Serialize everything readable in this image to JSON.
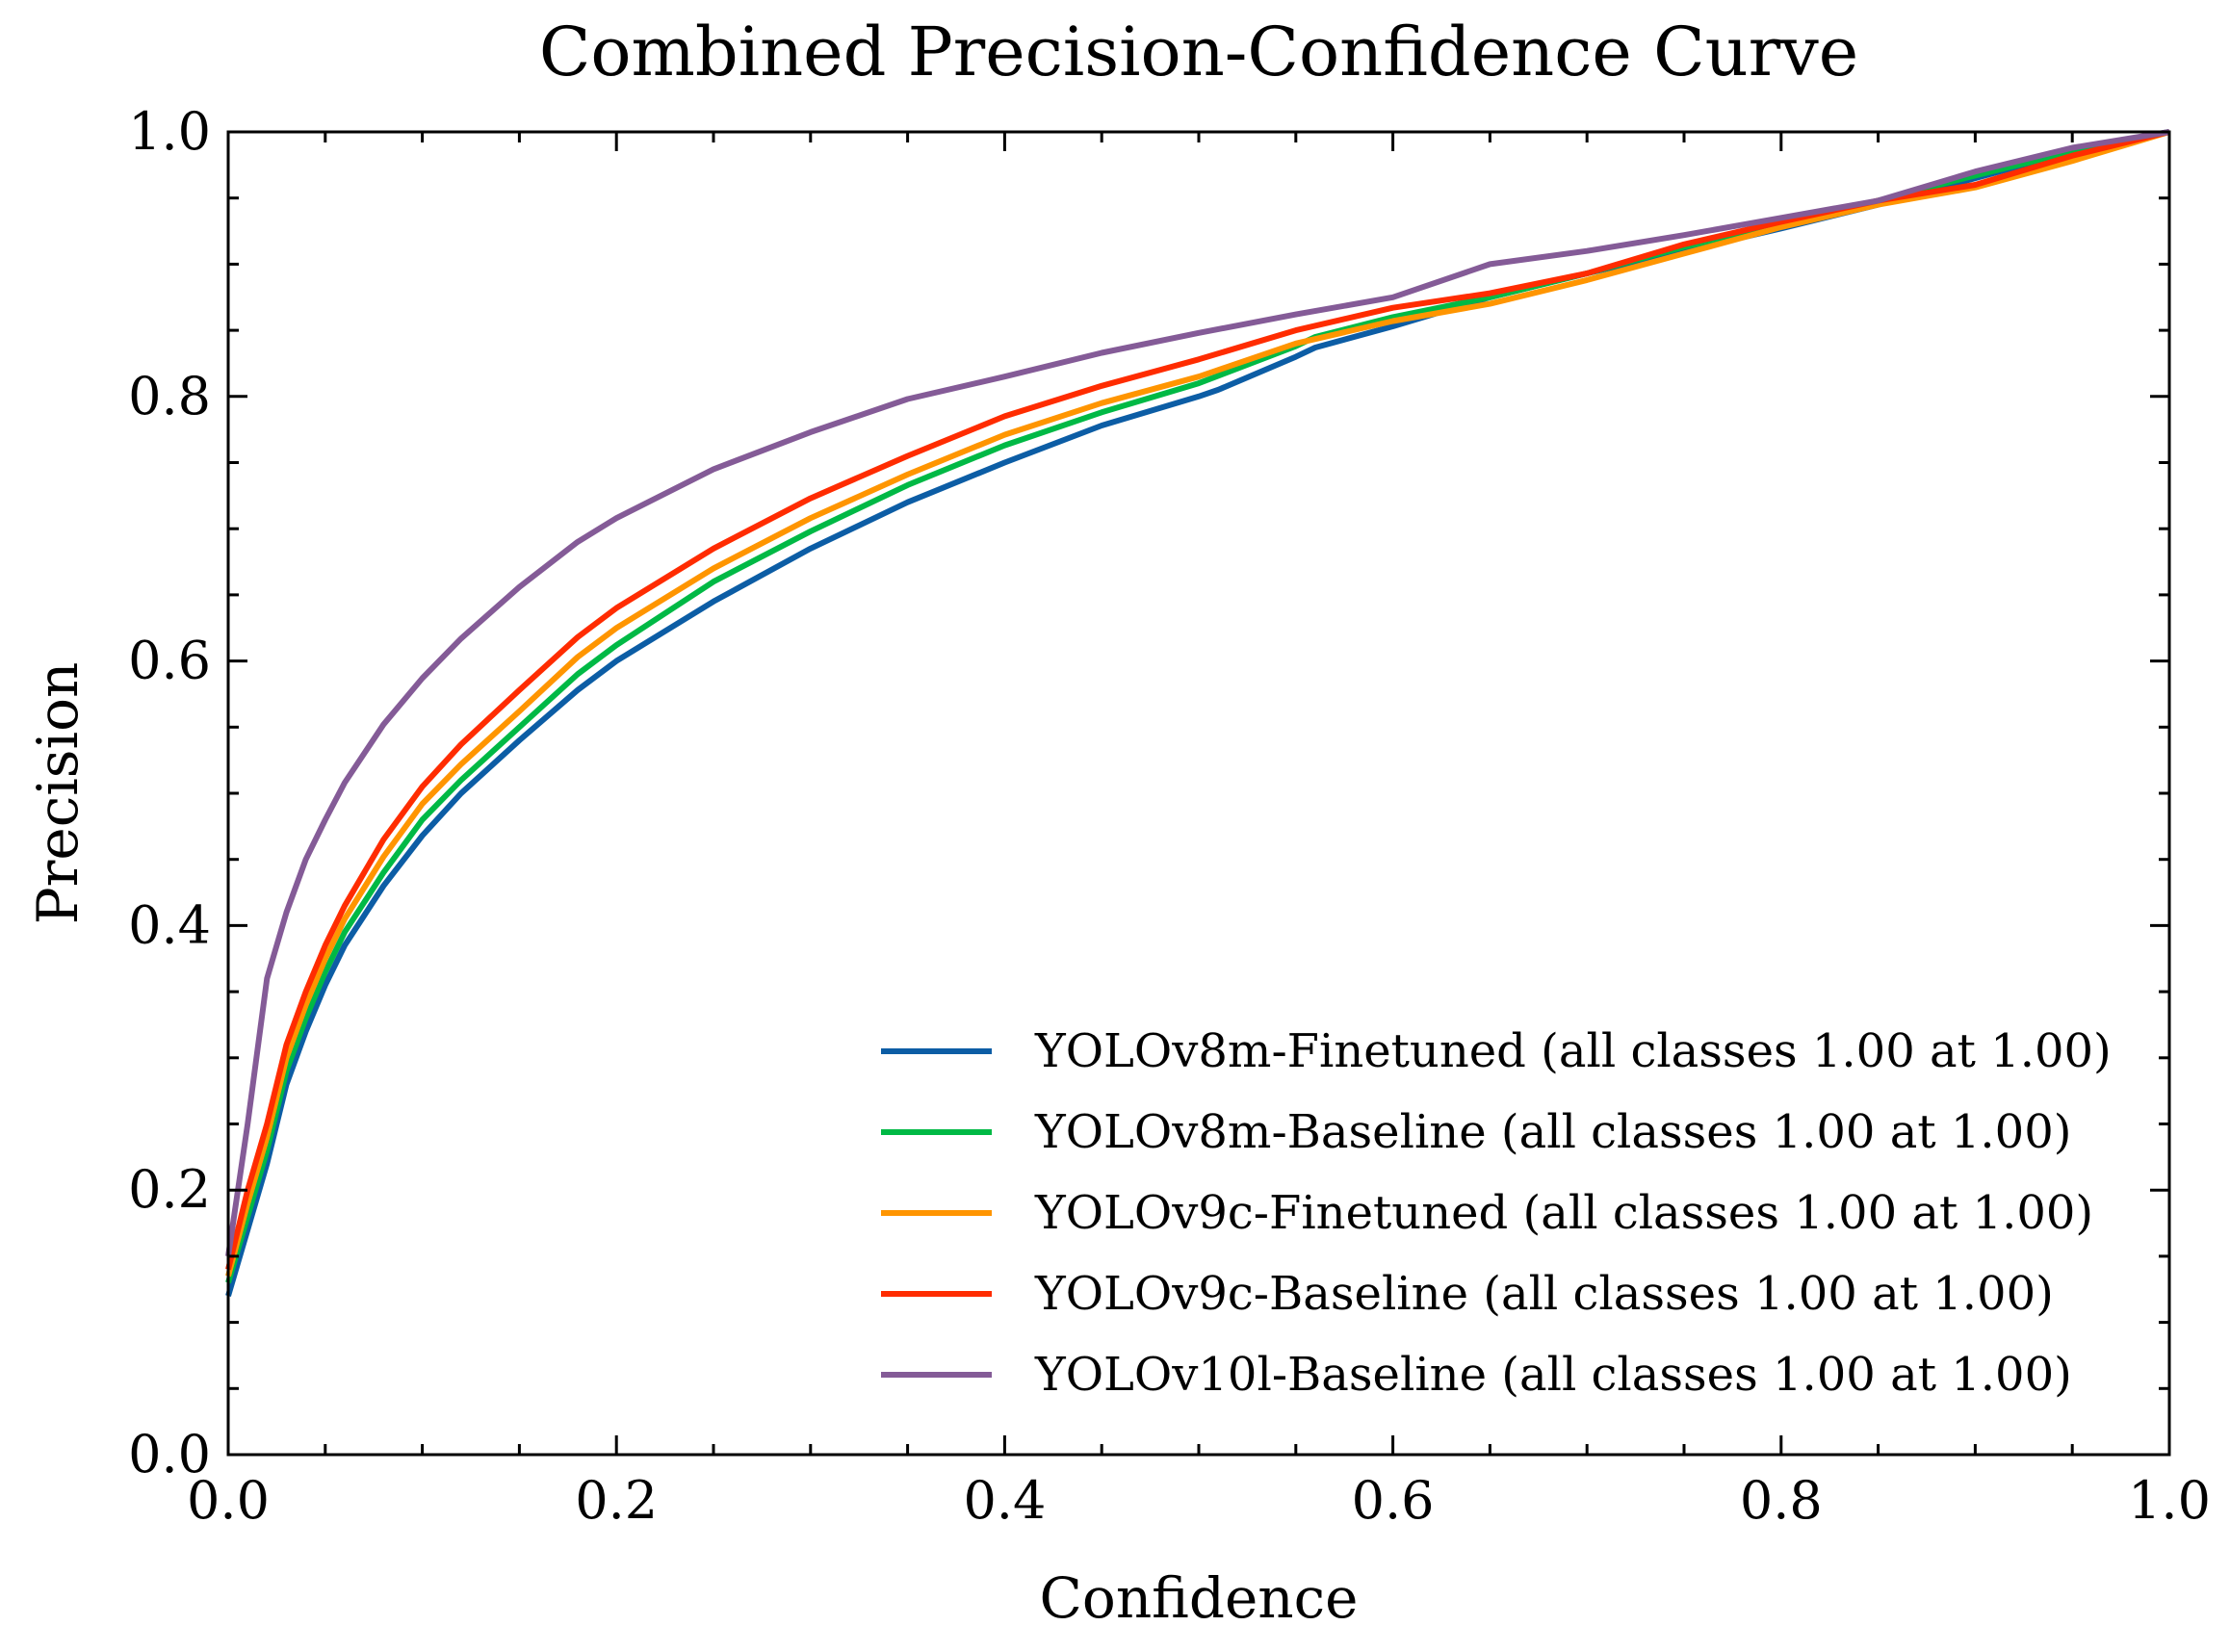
{
  "chart_data": {
    "type": "line",
    "title": "Combined Precision-Confidence Curve",
    "xlabel": "Confidence",
    "ylabel": "Precision",
    "xlim": [
      0.0,
      1.0
    ],
    "ylim": [
      0.0,
      1.0
    ],
    "xticks": [
      "0.0",
      "0.2",
      "0.4",
      "0.6",
      "0.8",
      "1.0"
    ],
    "yticks": [
      "0.0",
      "0.2",
      "0.4",
      "0.6",
      "0.8",
      "1.0"
    ],
    "grid": false,
    "legend_position": "lower-right",
    "series": [
      {
        "name": "YOLOv8m-Finetuned (all classes 1.00 at 1.00)",
        "color": "#0c5da5",
        "x": [
          0.0,
          0.01,
          0.02,
          0.03,
          0.04,
          0.05,
          0.06,
          0.08,
          0.1,
          0.12,
          0.15,
          0.18,
          0.2,
          0.25,
          0.3,
          0.35,
          0.4,
          0.45,
          0.5,
          0.51,
          0.55,
          0.56,
          0.6,
          0.65,
          0.7,
          0.75,
          0.8,
          0.85,
          0.9,
          0.95,
          1.0
        ],
        "y": [
          0.12,
          0.17,
          0.22,
          0.28,
          0.32,
          0.355,
          0.385,
          0.43,
          0.468,
          0.5,
          0.54,
          0.578,
          0.6,
          0.645,
          0.685,
          0.72,
          0.75,
          0.778,
          0.8,
          0.805,
          0.83,
          0.837,
          0.853,
          0.875,
          0.893,
          0.91,
          0.927,
          0.945,
          0.965,
          0.985,
          1.0
        ]
      },
      {
        "name": "YOLOv8m-Baseline (all classes 1.00 at 1.00)",
        "color": "#00b945",
        "x": [
          0.0,
          0.01,
          0.02,
          0.03,
          0.04,
          0.05,
          0.06,
          0.08,
          0.1,
          0.12,
          0.15,
          0.18,
          0.2,
          0.25,
          0.3,
          0.35,
          0.4,
          0.45,
          0.5,
          0.55,
          0.56,
          0.6,
          0.65,
          0.7,
          0.75,
          0.8,
          0.85,
          0.9,
          0.95,
          1.0
        ],
        "y": [
          0.13,
          0.18,
          0.23,
          0.29,
          0.33,
          0.365,
          0.395,
          0.44,
          0.48,
          0.51,
          0.55,
          0.59,
          0.612,
          0.66,
          0.698,
          0.733,
          0.763,
          0.788,
          0.81,
          0.838,
          0.845,
          0.86,
          0.875,
          0.893,
          0.913,
          0.93,
          0.948,
          0.967,
          0.985,
          1.0
        ]
      },
      {
        "name": "YOLOv9c-Finetuned (all classes 1.00 at 1.00)",
        "color": "#ff9500",
        "x": [
          0.0,
          0.01,
          0.02,
          0.03,
          0.04,
          0.05,
          0.06,
          0.08,
          0.1,
          0.12,
          0.15,
          0.18,
          0.2,
          0.25,
          0.3,
          0.35,
          0.4,
          0.45,
          0.5,
          0.55,
          0.6,
          0.65,
          0.7,
          0.75,
          0.8,
          0.85,
          0.9,
          0.95,
          1.0
        ],
        "y": [
          0.135,
          0.19,
          0.24,
          0.3,
          0.34,
          0.375,
          0.405,
          0.452,
          0.492,
          0.522,
          0.562,
          0.603,
          0.625,
          0.67,
          0.708,
          0.741,
          0.771,
          0.795,
          0.815,
          0.84,
          0.857,
          0.87,
          0.888,
          0.908,
          0.928,
          0.945,
          0.958,
          0.978,
          1.0
        ]
      },
      {
        "name": "YOLOv9c-Baseline (all classes 1.00 at 1.00)",
        "color": "#ff2c00",
        "x": [
          0.0,
          0.01,
          0.02,
          0.03,
          0.04,
          0.05,
          0.06,
          0.08,
          0.1,
          0.12,
          0.15,
          0.18,
          0.2,
          0.25,
          0.3,
          0.35,
          0.4,
          0.45,
          0.5,
          0.55,
          0.6,
          0.65,
          0.7,
          0.75,
          0.8,
          0.85,
          0.9,
          0.95,
          1.0
        ],
        "y": [
          0.14,
          0.2,
          0.25,
          0.31,
          0.35,
          0.385,
          0.415,
          0.465,
          0.505,
          0.537,
          0.578,
          0.618,
          0.64,
          0.685,
          0.723,
          0.755,
          0.785,
          0.808,
          0.828,
          0.85,
          0.867,
          0.878,
          0.893,
          0.915,
          0.932,
          0.948,
          0.96,
          0.982,
          1.0
        ]
      },
      {
        "name": "YOLOv10l-Baseline (all classes 1.00 at 1.00)",
        "color": "#845b97",
        "x": [
          0.0,
          0.01,
          0.02,
          0.03,
          0.04,
          0.05,
          0.06,
          0.08,
          0.1,
          0.12,
          0.15,
          0.18,
          0.2,
          0.25,
          0.3,
          0.35,
          0.4,
          0.45,
          0.5,
          0.55,
          0.6,
          0.65,
          0.7,
          0.75,
          0.8,
          0.85,
          0.9,
          0.95,
          1.0
        ],
        "y": [
          0.15,
          0.25,
          0.36,
          0.41,
          0.45,
          0.48,
          0.508,
          0.552,
          0.587,
          0.617,
          0.656,
          0.69,
          0.708,
          0.745,
          0.773,
          0.798,
          0.815,
          0.833,
          0.848,
          0.862,
          0.875,
          0.9,
          0.91,
          0.922,
          0.935,
          0.948,
          0.97,
          0.988,
          1.0
        ]
      }
    ]
  }
}
